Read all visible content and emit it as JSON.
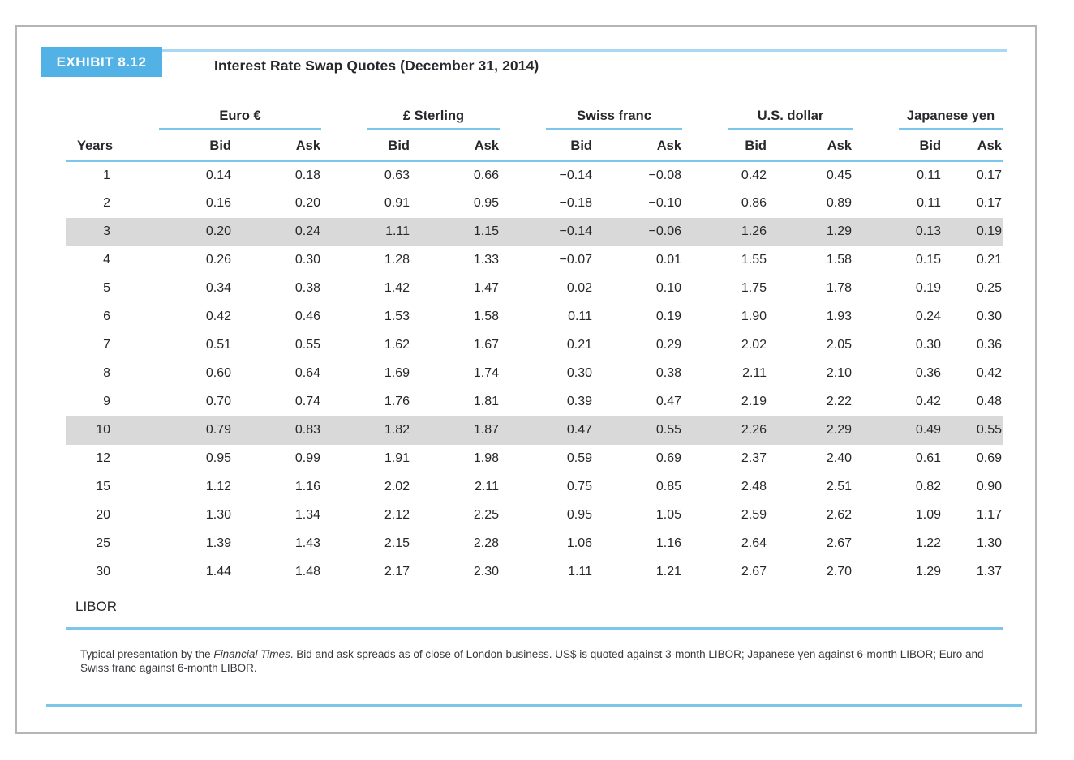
{
  "colors": {
    "accent": "#52b2e6",
    "rule": "#7cc6ec",
    "rule-light": "#a9d9f2",
    "shade": "#d9d9d9"
  },
  "exhibit": {
    "tag": "EXHIBIT 8.12",
    "title": "Interest Rate Swap Quotes (December 31, 2014)"
  },
  "table": {
    "row_header": "Years",
    "groups": [
      {
        "label": "Euro €"
      },
      {
        "label": "£ Sterling"
      },
      {
        "label": "Swiss franc"
      },
      {
        "label": "U.S. dollar"
      },
      {
        "label": "Japanese yen"
      }
    ],
    "sub_headers": [
      "Bid",
      "Ask"
    ],
    "rows": [
      {
        "years": "1",
        "shaded": false,
        "values": [
          "0.14",
          "0.18",
          "0.63",
          "0.66",
          "−0.14",
          "−0.08",
          "0.42",
          "0.45",
          "0.11",
          "0.17"
        ]
      },
      {
        "years": "2",
        "shaded": false,
        "values": [
          "0.16",
          "0.20",
          "0.91",
          "0.95",
          "−0.18",
          "−0.10",
          "0.86",
          "0.89",
          "0.11",
          "0.17"
        ]
      },
      {
        "years": "3",
        "shaded": true,
        "values": [
          "0.20",
          "0.24",
          "1.11",
          "1.15",
          "−0.14",
          "−0.06",
          "1.26",
          "1.29",
          "0.13",
          "0.19"
        ]
      },
      {
        "years": "4",
        "shaded": false,
        "values": [
          "0.26",
          "0.30",
          "1.28",
          "1.33",
          "−0.07",
          "0.01",
          "1.55",
          "1.58",
          "0.15",
          "0.21"
        ]
      },
      {
        "years": "5",
        "shaded": false,
        "values": [
          "0.34",
          "0.38",
          "1.42",
          "1.47",
          "0.02",
          "0.10",
          "1.75",
          "1.78",
          "0.19",
          "0.25"
        ]
      },
      {
        "years": "6",
        "shaded": false,
        "values": [
          "0.42",
          "0.46",
          "1.53",
          "1.58",
          "0.11",
          "0.19",
          "1.90",
          "1.93",
          "0.24",
          "0.30"
        ]
      },
      {
        "years": "7",
        "shaded": false,
        "values": [
          "0.51",
          "0.55",
          "1.62",
          "1.67",
          "0.21",
          "0.29",
          "2.02",
          "2.05",
          "0.30",
          "0.36"
        ]
      },
      {
        "years": "8",
        "shaded": false,
        "values": [
          "0.60",
          "0.64",
          "1.69",
          "1.74",
          "0.30",
          "0.38",
          "2.11",
          "2.10",
          "0.36",
          "0.42"
        ]
      },
      {
        "years": "9",
        "shaded": false,
        "values": [
          "0.70",
          "0.74",
          "1.76",
          "1.81",
          "0.39",
          "0.47",
          "2.19",
          "2.22",
          "0.42",
          "0.48"
        ]
      },
      {
        "years": "10",
        "shaded": true,
        "values": [
          "0.79",
          "0.83",
          "1.82",
          "1.87",
          "0.47",
          "0.55",
          "2.26",
          "2.29",
          "0.49",
          "0.55"
        ]
      },
      {
        "years": "12",
        "shaded": false,
        "values": [
          "0.95",
          "0.99",
          "1.91",
          "1.98",
          "0.59",
          "0.69",
          "2.37",
          "2.40",
          "0.61",
          "0.69"
        ]
      },
      {
        "years": "15",
        "shaded": false,
        "values": [
          "1.12",
          "1.16",
          "2.02",
          "2.11",
          "0.75",
          "0.85",
          "2.48",
          "2.51",
          "0.82",
          "0.90"
        ]
      },
      {
        "years": "20",
        "shaded": false,
        "values": [
          "1.30",
          "1.34",
          "2.12",
          "2.25",
          "0.95",
          "1.05",
          "2.59",
          "2.62",
          "1.09",
          "1.17"
        ]
      },
      {
        "years": "25",
        "shaded": false,
        "values": [
          "1.39",
          "1.43",
          "2.15",
          "2.28",
          "1.06",
          "1.16",
          "2.64",
          "2.67",
          "1.22",
          "1.30"
        ]
      },
      {
        "years": "30",
        "shaded": false,
        "values": [
          "1.44",
          "1.48",
          "2.17",
          "2.30",
          "1.11",
          "1.21",
          "2.67",
          "2.70",
          "1.29",
          "1.37"
        ]
      }
    ],
    "footer_row": "LIBOR"
  },
  "footnote": {
    "part1": "Typical presentation by the ",
    "italic": "Financial Times",
    "part2": ". Bid and ask spreads as of close of London business. US$ is quoted against 3-month LIBOR; Japanese yen against 6-month LIBOR; Euro and Swiss franc against 6-month LIBOR."
  }
}
